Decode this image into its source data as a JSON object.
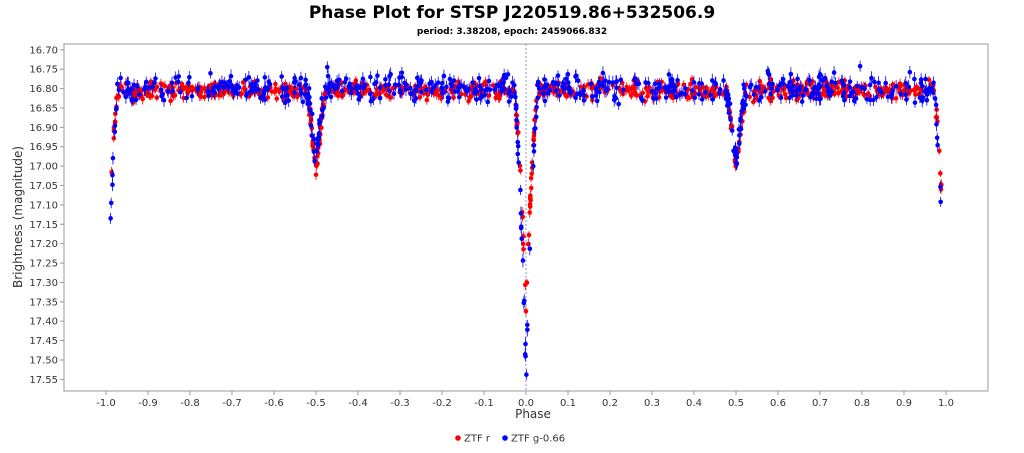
{
  "chart_data": {
    "type": "scatter",
    "title": "Phase Plot for STSP J220519.86+532506.9",
    "subtitle": "period: 3.38208, epoch: 2459066.832",
    "xlabel": "Phase",
    "ylabel": "Brightness (magnitude)",
    "xlim": [
      -1.1,
      1.1
    ],
    "ylim": [
      16.685,
      17.58
    ],
    "y_inverted": true,
    "x_ticks": [
      -1.0,
      -0.9,
      -0.8,
      -0.7,
      -0.6,
      -0.5,
      -0.4,
      -0.3,
      -0.2,
      -0.1,
      0.0,
      0.1,
      0.2,
      0.3,
      0.4,
      0.5,
      0.6,
      0.7,
      0.8,
      0.9,
      1.0
    ],
    "x_tick_labels": [
      "-1.0",
      "-0.9",
      "-0.8",
      "-0.7",
      "-0.6",
      "-0.5",
      "-0.4",
      "-0.3",
      "-0.2",
      "-0.1",
      "0.0",
      "0.1",
      "0.2",
      "0.3",
      "0.4",
      "0.5",
      "0.6",
      "0.7",
      "0.8",
      "0.9",
      "1.0"
    ],
    "y_ticks": [
      16.7,
      16.75,
      16.8,
      16.85,
      16.9,
      16.95,
      17.0,
      17.05,
      17.1,
      17.15,
      17.2,
      17.25,
      17.3,
      17.35,
      17.4,
      17.45,
      17.5,
      17.55
    ],
    "y_tick_labels": [
      "16.70",
      "16.75",
      "16.80",
      "16.85",
      "16.90",
      "16.95",
      "17.00",
      "17.05",
      "17.10",
      "17.15",
      "17.20",
      "17.25",
      "17.30",
      "17.35",
      "17.40",
      "17.45",
      "17.50",
      "17.55"
    ],
    "grid": false,
    "epoch_marker_x": 0.0,
    "legend_position": "bottom-center",
    "series": [
      {
        "name": "ZTF r",
        "color": "#ff0000",
        "profile": {
          "baseline": 16.805,
          "primary_eclipse": {
            "phase": 0.0,
            "depth_mag": 17.36,
            "half_width": 0.03
          },
          "secondary_eclipse": {
            "phase": 0.5,
            "depth_mag": 17.02,
            "half_width": 0.025
          }
        }
      },
      {
        "name": "ZTF g-0.66",
        "color": "#0000ff",
        "profile": {
          "baseline": 16.8,
          "primary_eclipse": {
            "phase": 0.0,
            "depth_mag": 17.53,
            "half_width": 0.03
          },
          "secondary_eclipse": {
            "phase": 0.5,
            "depth_mag": 16.99,
            "half_width": 0.025
          }
        }
      }
    ]
  }
}
